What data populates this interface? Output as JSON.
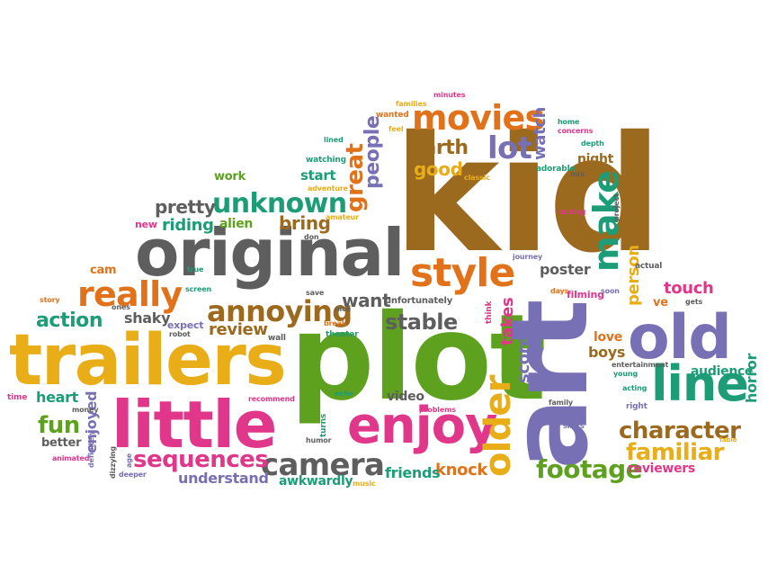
{
  "colors": {
    "brown": "#9b6a1f",
    "orange": "#e2721a",
    "green": "#5da11f",
    "magenta": "#e0378b",
    "gold": "#e8ad17",
    "purple": "#7870b4",
    "gray": "#5e5e5e",
    "teal": "#1c9d78"
  },
  "words": [
    {
      "text": "kid",
      "color": "brown"
    },
    {
      "text": "plot",
      "color": "green"
    },
    {
      "text": "art",
      "color": "purple"
    },
    {
      "text": "trailers",
      "color": "gold"
    },
    {
      "text": "original",
      "color": "gray"
    },
    {
      "text": "little",
      "color": "magenta"
    },
    {
      "text": "old",
      "color": "purple"
    },
    {
      "text": "line",
      "color": "teal"
    },
    {
      "text": "enjoy",
      "color": "magenta"
    },
    {
      "text": "style",
      "color": "orange"
    },
    {
      "text": "movies",
      "color": "orange"
    },
    {
      "text": "make",
      "color": "teal"
    },
    {
      "text": "older",
      "color": "gold"
    },
    {
      "text": "really",
      "color": "orange"
    },
    {
      "text": "annoying",
      "color": "brown"
    },
    {
      "text": "camera",
      "color": "gray"
    },
    {
      "text": "sequences",
      "color": "magenta"
    },
    {
      "text": "unknown",
      "color": "teal"
    },
    {
      "text": "lot",
      "color": "purple"
    },
    {
      "text": "character",
      "color": "brown"
    },
    {
      "text": "footage",
      "color": "green"
    },
    {
      "text": "familiar",
      "color": "gold"
    },
    {
      "text": "stable",
      "color": "gray"
    },
    {
      "text": "action",
      "color": "teal"
    },
    {
      "text": "fun",
      "color": "green"
    },
    {
      "text": "great",
      "color": "orange"
    },
    {
      "text": "people",
      "color": "purple"
    },
    {
      "text": "earth",
      "color": "brown"
    },
    {
      "text": "good",
      "color": "gold"
    },
    {
      "text": "pretty",
      "color": "gray"
    },
    {
      "text": "bring",
      "color": "brown"
    },
    {
      "text": "riding",
      "color": "teal"
    },
    {
      "text": "alien",
      "color": "green"
    },
    {
      "text": "review",
      "color": "brown"
    },
    {
      "text": "want",
      "color": "gray"
    },
    {
      "text": "shaky",
      "color": "gray"
    },
    {
      "text": "touch",
      "color": "magenta"
    },
    {
      "text": "person",
      "color": "gold"
    },
    {
      "text": "poster",
      "color": "gray"
    },
    {
      "text": "horror",
      "color": "teal"
    },
    {
      "text": "audience",
      "color": "teal"
    },
    {
      "text": "boys",
      "color": "brown"
    },
    {
      "text": "love",
      "color": "orange"
    },
    {
      "text": "knock",
      "color": "orange"
    },
    {
      "text": "friends",
      "color": "teal"
    },
    {
      "text": "understand",
      "color": "purple"
    },
    {
      "text": "awkwardly",
      "color": "teal"
    },
    {
      "text": "reviewers",
      "color": "magenta"
    },
    {
      "text": "scores",
      "color": "purple"
    },
    {
      "text": "takes",
      "color": "magenta"
    },
    {
      "text": "video",
      "color": "gray"
    },
    {
      "text": "heart",
      "color": "teal"
    },
    {
      "text": "enjoyed",
      "color": "purple"
    },
    {
      "text": "better",
      "color": "gray"
    },
    {
      "text": "watch",
      "color": "purple"
    },
    {
      "text": "night",
      "color": "brown"
    },
    {
      "text": "start",
      "color": "teal"
    },
    {
      "text": "work",
      "color": "green"
    },
    {
      "text": "cam",
      "color": "orange"
    },
    {
      "text": "expect",
      "color": "purple"
    },
    {
      "text": "ve",
      "color": "orange"
    },
    {
      "text": "new",
      "color": "magenta"
    },
    {
      "text": "wall",
      "color": "gray"
    },
    {
      "text": "time",
      "color": "magenta"
    },
    {
      "text": "filming",
      "color": "magenta"
    },
    {
      "text": "unfortunately",
      "color": "gray"
    },
    {
      "text": "entertainment",
      "color": "gray"
    },
    {
      "text": "adorable",
      "color": "teal"
    },
    {
      "text": "minutes",
      "color": "magenta"
    },
    {
      "text": "families",
      "color": "gold"
    },
    {
      "text": "wanted",
      "color": "orange"
    },
    {
      "text": "feel",
      "color": "gold"
    },
    {
      "text": "watching",
      "color": "teal"
    },
    {
      "text": "adventure",
      "color": "gold"
    },
    {
      "text": "lined",
      "color": "teal"
    },
    {
      "text": "classic",
      "color": "gold"
    },
    {
      "text": "home",
      "color": "teal"
    },
    {
      "text": "concerns",
      "color": "magenta"
    },
    {
      "text": "depth",
      "color": "teal"
    },
    {
      "text": "mix",
      "color": "gray"
    },
    {
      "text": "lacking",
      "color": "magenta"
    },
    {
      "text": "journey",
      "color": "purple"
    },
    {
      "text": "amateur",
      "color": "gold"
    },
    {
      "text": "don",
      "color": "gray"
    },
    {
      "text": "save",
      "color": "gray"
    },
    {
      "text": "nice",
      "color": "gray"
    },
    {
      "text": "break",
      "color": "orange"
    },
    {
      "text": "theater",
      "color": "teal"
    },
    {
      "text": "echo",
      "color": "teal"
    },
    {
      "text": "problems",
      "color": "magenta"
    },
    {
      "text": "recommend",
      "color": "magenta"
    },
    {
      "text": "humor",
      "color": "gray"
    },
    {
      "text": "turns",
      "color": "teal"
    },
    {
      "text": "music",
      "color": "gold"
    },
    {
      "text": "shots",
      "color": "purple"
    },
    {
      "text": "family",
      "color": "gray"
    },
    {
      "text": "right",
      "color": "purple"
    },
    {
      "text": "acting",
      "color": "teal"
    },
    {
      "text": "young",
      "color": "teal"
    },
    {
      "text": "gets",
      "color": "gray"
    },
    {
      "text": "actual",
      "color": "gray"
    },
    {
      "text": "days",
      "color": "orange"
    },
    {
      "text": "think",
      "color": "magenta"
    },
    {
      "text": "story",
      "color": "orange"
    },
    {
      "text": "true",
      "color": "teal"
    },
    {
      "text": "screen",
      "color": "teal"
    },
    {
      "text": "robot",
      "color": "gray"
    },
    {
      "text": "age",
      "color": "purple"
    },
    {
      "text": "deeper",
      "color": "purple"
    },
    {
      "text": "animated",
      "color": "magenta"
    },
    {
      "text": "money",
      "color": "gray"
    },
    {
      "text": "definitely",
      "color": "purple"
    },
    {
      "text": "dizzying",
      "color": "gray"
    },
    {
      "text": "project",
      "color": "gray"
    },
    {
      "text": "fable",
      "color": "gold"
    },
    {
      "text": "soon",
      "color": "purple"
    },
    {
      "text": "ones",
      "color": "gray"
    }
  ]
}
